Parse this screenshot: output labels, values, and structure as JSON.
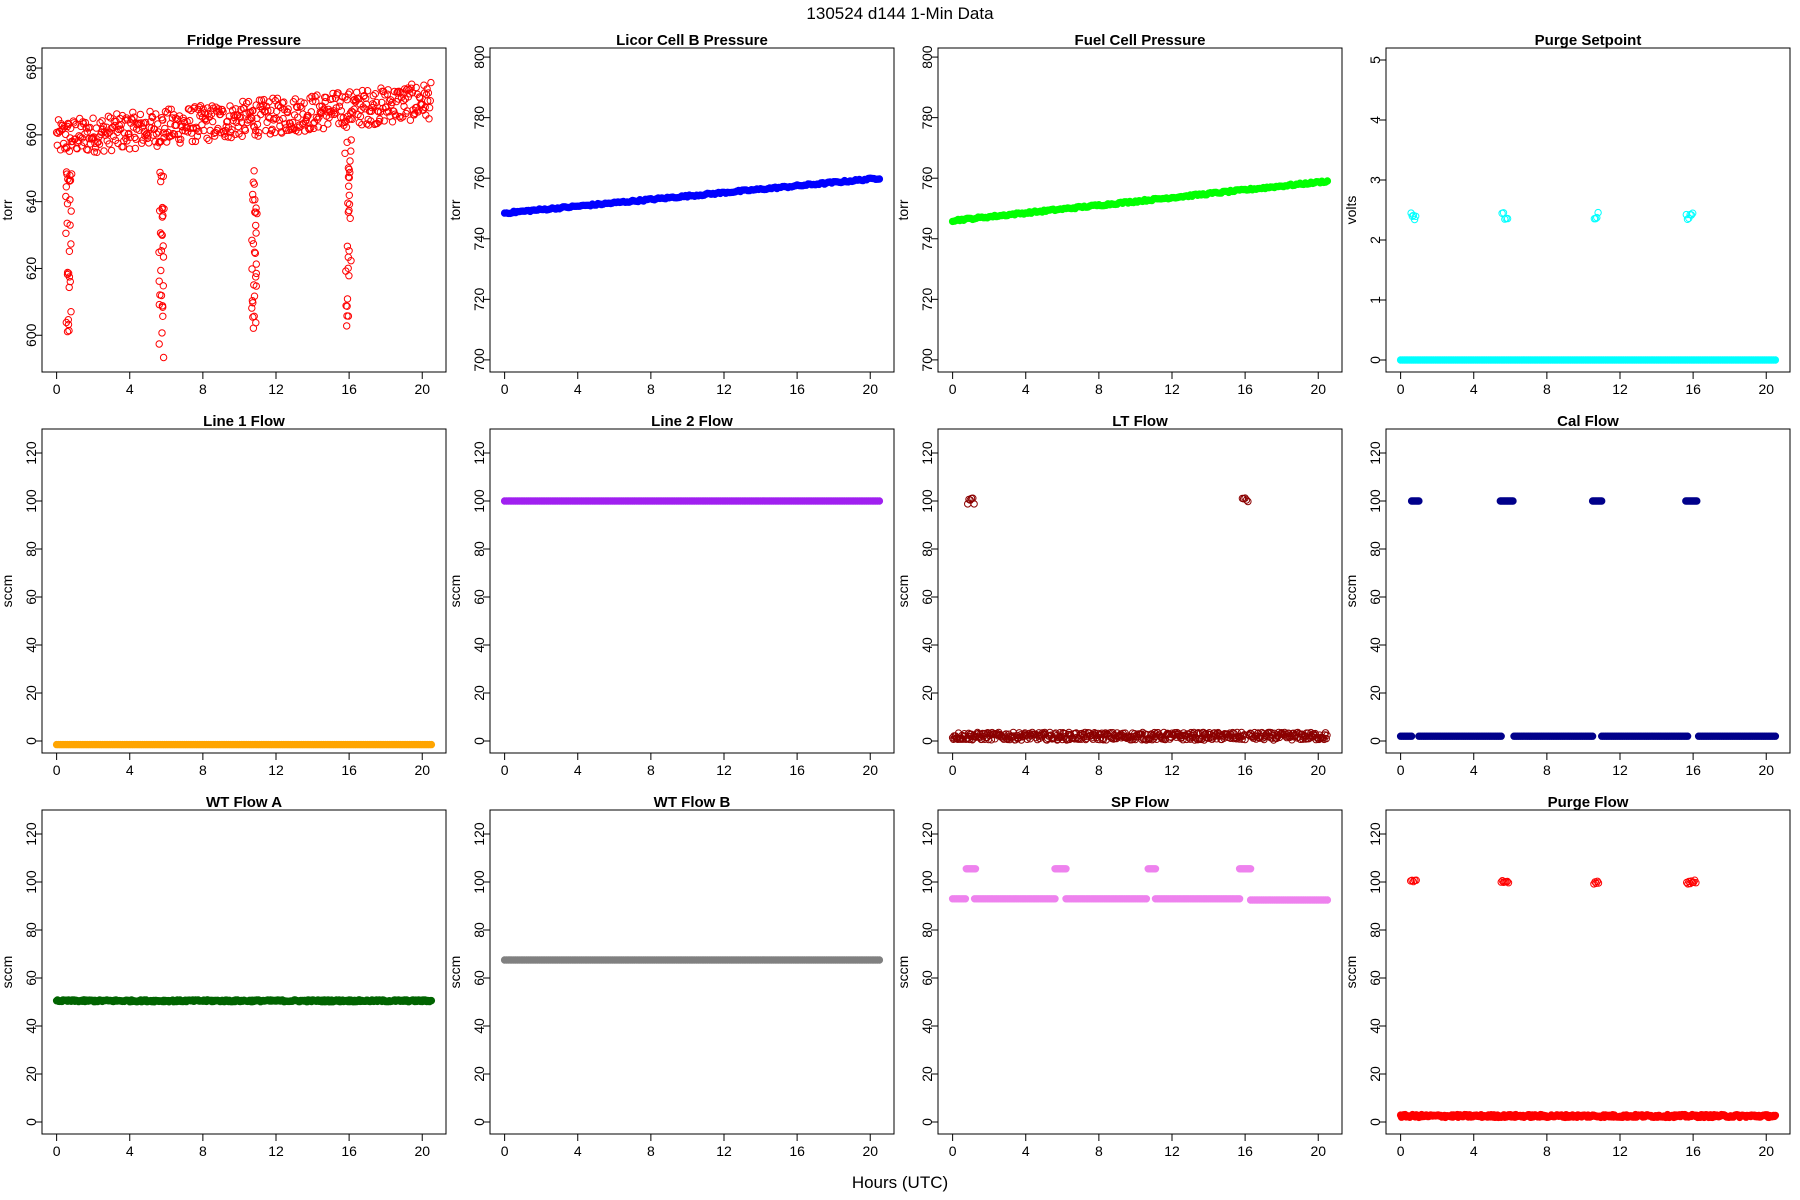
{
  "figure": {
    "title": "130524   d144   1-Min Data",
    "xlabel": "Hours (UTC)"
  },
  "chart_data": [
    {
      "type": "scatter",
      "title": "Fridge Pressure",
      "ylabel": "torr",
      "xlim": [
        -0.8,
        21.3
      ],
      "ylim": [
        589,
        686
      ],
      "xticks": [
        0,
        4,
        8,
        12,
        16,
        20
      ],
      "yticks": [
        600,
        620,
        640,
        660,
        680
      ],
      "color": "#ff0000",
      "marker": "open",
      "series": [
        {
          "segments": [
            {
              "x0": 0.0,
              "x1": 20.5,
              "base": 659,
              "slope": 0.55,
              "amp": 5.5,
              "step": 0.035
            }
          ],
          "spikes": [
            {
              "x": 0.5,
              "w": 0.3,
              "lo": 594,
              "hi": 652
            },
            {
              "x": 5.6,
              "w": 0.3,
              "lo": 592,
              "hi": 652
            },
            {
              "x": 10.7,
              "w": 0.25,
              "lo": 602,
              "hi": 652
            },
            {
              "x": 15.8,
              "w": 0.3,
              "lo": 599,
              "hi": 660
            }
          ]
        }
      ]
    },
    {
      "type": "scatter",
      "title": "Licor Cell B Pressure",
      "ylabel": "torr",
      "xlim": [
        -0.8,
        21.3
      ],
      "ylim": [
        696,
        803
      ],
      "xticks": [
        0,
        4,
        8,
        12,
        16,
        20
      ],
      "yticks": [
        700,
        720,
        740,
        760,
        780,
        800
      ],
      "color": "#0000ff",
      "marker": "filled",
      "series": [
        {
          "segments": [
            {
              "x0": 0.0,
              "x1": 20.5,
              "y0": 748.5,
              "y1": 760,
              "amp": 0.3,
              "step": 0.1
            }
          ]
        }
      ]
    },
    {
      "type": "scatter",
      "title": "Fuel Cell Pressure",
      "ylabel": "torr",
      "xlim": [
        -0.8,
        21.3
      ],
      "ylim": [
        696,
        803
      ],
      "xticks": [
        0,
        4,
        8,
        12,
        16,
        20
      ],
      "yticks": [
        700,
        720,
        740,
        760,
        780,
        800
      ],
      "color": "#00ff00",
      "marker": "filled",
      "series": [
        {
          "segments": [
            {
              "x0": 0.0,
              "x1": 20.5,
              "y0": 746,
              "y1": 759,
              "amp": 0.3,
              "step": 0.1
            }
          ]
        }
      ]
    },
    {
      "type": "scatter",
      "title": "Purge Setpoint",
      "ylabel": "volts",
      "xlim": [
        -0.8,
        21.3
      ],
      "ylim": [
        -0.2,
        5.2
      ],
      "xticks": [
        0,
        4,
        8,
        12,
        16,
        20
      ],
      "yticks": [
        0,
        1,
        2,
        3,
        4,
        5
      ],
      "color": "#00ffff",
      "marker": "filled",
      "series": [
        {
          "segments": [
            {
              "x0": 0.0,
              "x1": 20.5,
              "y0": 0,
              "y1": 0,
              "amp": 0,
              "step": 0.1
            }
          ]
        },
        {
          "marker": "open",
          "clusters": [
            {
              "x": 0.7,
              "w": 0.25,
              "y": 2.4,
              "amp": 0.06
            },
            {
              "x": 5.7,
              "w": 0.3,
              "y": 2.4,
              "amp": 0.06
            },
            {
              "x": 10.7,
              "w": 0.2,
              "y": 2.4,
              "amp": 0.06
            },
            {
              "x": 15.8,
              "w": 0.35,
              "y": 2.4,
              "amp": 0.06
            }
          ]
        }
      ]
    },
    {
      "type": "scatter",
      "title": "Line 1 Flow",
      "ylabel": "sccm",
      "xlim": [
        -0.8,
        21.3
      ],
      "ylim": [
        -5,
        130
      ],
      "xticks": [
        0,
        4,
        8,
        12,
        16,
        20
      ],
      "yticks": [
        0,
        20,
        40,
        60,
        80,
        100,
        120
      ],
      "color": "#ffa500",
      "marker": "filled",
      "series": [
        {
          "segments": [
            {
              "x0": 0.0,
              "x1": 20.5,
              "y0": -1.5,
              "y1": -1.5,
              "amp": 0,
              "step": 0.1
            }
          ]
        }
      ]
    },
    {
      "type": "scatter",
      "title": "Line 2 Flow",
      "ylabel": "sccm",
      "xlim": [
        -0.8,
        21.3
      ],
      "ylim": [
        -5,
        130
      ],
      "xticks": [
        0,
        4,
        8,
        12,
        16,
        20
      ],
      "yticks": [
        0,
        20,
        40,
        60,
        80,
        100,
        120
      ],
      "color": "#a020f0",
      "marker": "filled",
      "series": [
        {
          "segments": [
            {
              "x0": 0.0,
              "x1": 20.5,
              "y0": 100,
              "y1": 100,
              "amp": 0,
              "step": 0.1
            }
          ]
        }
      ]
    },
    {
      "type": "scatter",
      "title": "LT Flow",
      "ylabel": "sccm",
      "xlim": [
        -0.8,
        21.3
      ],
      "ylim": [
        -5,
        130
      ],
      "xticks": [
        0,
        4,
        8,
        12,
        16,
        20
      ],
      "yticks": [
        0,
        20,
        40,
        60,
        80,
        100,
        120
      ],
      "color": "#8b0000",
      "marker": "open",
      "series": [
        {
          "segments": [
            {
              "x0": 0.0,
              "x1": 16.0,
              "y0": 2,
              "y1": 2,
              "amp": 1.6,
              "step": 0.04
            },
            {
              "x0": 16.2,
              "x1": 20.5,
              "y0": 2,
              "y1": 2,
              "amp": 1.6,
              "step": 0.04
            }
          ]
        },
        {
          "clusters": [
            {
              "x": 1.0,
              "w": 0.35,
              "y": 100,
              "amp": 1.5
            },
            {
              "x": 16.0,
              "w": 0.3,
              "y": 100,
              "amp": 1.5
            }
          ]
        }
      ]
    },
    {
      "type": "scatter",
      "title": "Cal Flow",
      "ylabel": "sccm",
      "xlim": [
        -0.8,
        21.3
      ],
      "ylim": [
        -5,
        130
      ],
      "xticks": [
        0,
        4,
        8,
        12,
        16,
        20
      ],
      "yticks": [
        0,
        20,
        40,
        60,
        80,
        100,
        120
      ],
      "color": "#00008b",
      "marker": "filled",
      "series": [
        {
          "segments": [
            {
              "x0": 0.0,
              "x1": 0.6,
              "y0": 2,
              "y1": 2,
              "amp": 0,
              "step": 0.1
            },
            {
              "x0": 1.0,
              "x1": 5.5,
              "y0": 2,
              "y1": 2,
              "amp": 0,
              "step": 0.1
            },
            {
              "x0": 6.2,
              "x1": 10.5,
              "y0": 2,
              "y1": 2,
              "amp": 0,
              "step": 0.1
            },
            {
              "x0": 11.0,
              "x1": 15.7,
              "y0": 2,
              "y1": 2,
              "amp": 0,
              "step": 0.1
            },
            {
              "x0": 16.3,
              "x1": 20.5,
              "y0": 2,
              "y1": 2,
              "amp": 0,
              "step": 0.1
            }
          ]
        },
        {
          "clusters": [
            {
              "x": 0.8,
              "w": 0.4,
              "y": 100,
              "amp": 0
            },
            {
              "x": 5.8,
              "w": 0.7,
              "y": 100,
              "amp": 0
            },
            {
              "x": 10.75,
              "w": 0.5,
              "y": 100,
              "amp": 0
            },
            {
              "x": 15.9,
              "w": 0.6,
              "y": 100,
              "amp": 0
            }
          ]
        }
      ]
    },
    {
      "type": "scatter",
      "title": "WT Flow A",
      "ylabel": "sccm",
      "xlim": [
        -0.8,
        21.3
      ],
      "ylim": [
        -5,
        130
      ],
      "xticks": [
        0,
        4,
        8,
        12,
        16,
        20
      ],
      "yticks": [
        0,
        20,
        40,
        60,
        80,
        100,
        120
      ],
      "color": "#006400",
      "marker": "filled",
      "series": [
        {
          "segments": [
            {
              "x0": 0.0,
              "x1": 20.5,
              "y0": 50.5,
              "y1": 50.5,
              "amp": 0.4,
              "step": 0.05
            }
          ]
        }
      ]
    },
    {
      "type": "scatter",
      "title": "WT Flow B",
      "ylabel": "sccm",
      "xlim": [
        -0.8,
        21.3
      ],
      "ylim": [
        -5,
        130
      ],
      "xticks": [
        0,
        4,
        8,
        12,
        16,
        20
      ],
      "yticks": [
        0,
        20,
        40,
        60,
        80,
        100,
        120
      ],
      "color": "#808080",
      "marker": "filled",
      "series": [
        {
          "segments": [
            {
              "x0": 0.0,
              "x1": 20.5,
              "y0": 67.5,
              "y1": 67.5,
              "amp": 0,
              "step": 0.1
            }
          ]
        }
      ]
    },
    {
      "type": "scatter",
      "title": "SP Flow",
      "ylabel": "sccm",
      "xlim": [
        -0.8,
        21.3
      ],
      "ylim": [
        -5,
        130
      ],
      "xticks": [
        0,
        4,
        8,
        12,
        16,
        20
      ],
      "yticks": [
        0,
        20,
        40,
        60,
        80,
        100,
        120
      ],
      "color": "#ee82ee",
      "marker": "filled",
      "series": [
        {
          "segments": [
            {
              "x0": 0.0,
              "x1": 0.7,
              "y0": 93,
              "y1": 93,
              "amp": 0,
              "step": 0.1
            },
            {
              "x0": 1.2,
              "x1": 5.6,
              "y0": 93,
              "y1": 93,
              "amp": 0,
              "step": 0.1
            },
            {
              "x0": 6.2,
              "x1": 10.6,
              "y0": 93,
              "y1": 93,
              "amp": 0,
              "step": 0.1
            },
            {
              "x0": 11.1,
              "x1": 15.7,
              "y0": 93,
              "y1": 93,
              "amp": 0,
              "step": 0.1
            },
            {
              "x0": 16.3,
              "x1": 20.5,
              "y0": 92.5,
              "y1": 92.5,
              "amp": 0,
              "step": 0.1
            }
          ]
        },
        {
          "clusters": [
            {
              "x": 1.0,
              "w": 0.5,
              "y": 105.5,
              "amp": 0
            },
            {
              "x": 5.9,
              "w": 0.6,
              "y": 105.5,
              "amp": 0
            },
            {
              "x": 10.9,
              "w": 0.4,
              "y": 105.5,
              "amp": 0
            },
            {
              "x": 16.0,
              "w": 0.6,
              "y": 105.5,
              "amp": 0
            }
          ]
        }
      ]
    },
    {
      "type": "scatter",
      "title": "Purge Flow",
      "ylabel": "sccm",
      "xlim": [
        -0.8,
        21.3
      ],
      "ylim": [
        -5,
        130
      ],
      "xticks": [
        0,
        4,
        8,
        12,
        16,
        20
      ],
      "yticks": [
        0,
        20,
        40,
        60,
        80,
        100,
        120
      ],
      "color": "#ff0000",
      "marker": "filled",
      "series": [
        {
          "segments": [
            {
              "x0": 0.0,
              "x1": 20.5,
              "y0": 2.5,
              "y1": 2.5,
              "amp": 0.6,
              "step": 0.05
            }
          ]
        },
        {
          "marker": "open",
          "clusters": [
            {
              "x": 0.7,
              "w": 0.3,
              "y": 100,
              "amp": 0.8
            },
            {
              "x": 5.7,
              "w": 0.4,
              "y": 100,
              "amp": 0.8
            },
            {
              "x": 10.7,
              "w": 0.25,
              "y": 100,
              "amp": 0.8
            },
            {
              "x": 15.9,
              "w": 0.5,
              "y": 100,
              "amp": 0.8
            }
          ]
        }
      ]
    }
  ]
}
